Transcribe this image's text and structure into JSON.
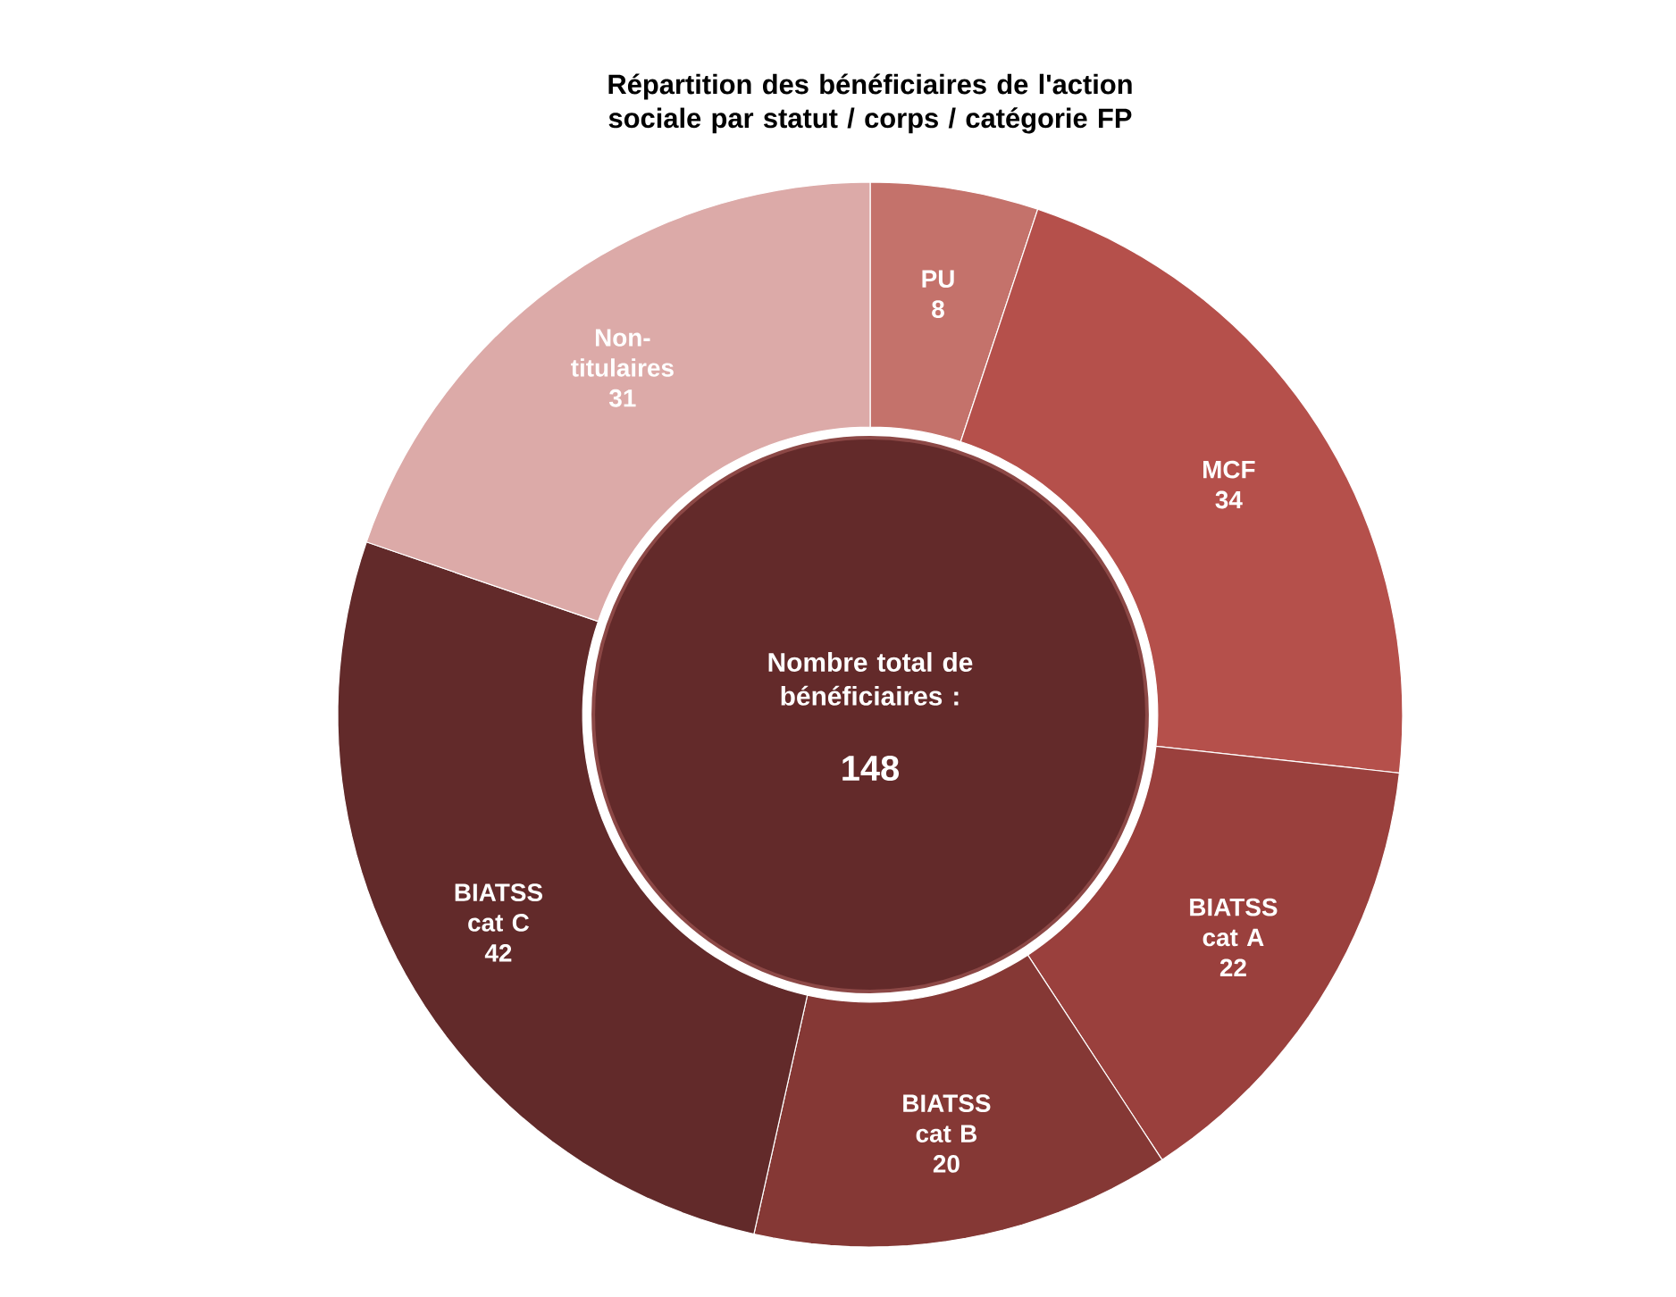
{
  "chart_data": {
    "type": "donut",
    "title": "Répartition des bénéficiaires de l'action sociale par statut / corps / catégorie FP",
    "categories": [
      "PU",
      "MCF",
      "BIATSS cat A",
      "BIATSS cat B",
      "BIATSS cat C",
      "Non-titulaires"
    ],
    "values": [
      8,
      34,
      22,
      20,
      42,
      31
    ],
    "colors": [
      "#c4726b",
      "#b5504b",
      "#9a403d",
      "#853835",
      "#622a2a",
      "#dcaaa8"
    ],
    "data_labels": true,
    "annotations": [
      "Nombre total de bénéficiaires :",
      "148"
    ]
  }
}
